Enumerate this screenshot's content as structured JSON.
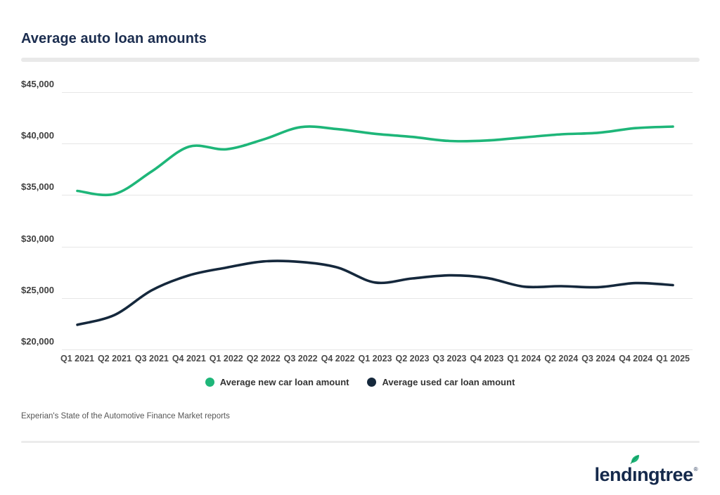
{
  "page": {
    "title": "Average auto loan amounts",
    "source": "Experian's State of the Automotive Finance Market reports",
    "logo": {
      "text_pre": "lend",
      "text_i": "ı",
      "text_post": "ngtree",
      "mark": "®"
    }
  },
  "chart_data": {
    "type": "line",
    "title": "Average auto loan amounts",
    "categories": [
      "Q1 2021",
      "Q2 2021",
      "Q3 2021",
      "Q4 2021",
      "Q1 2022",
      "Q2 2022",
      "Q3 2022",
      "Q4 2022",
      "Q1 2023",
      "Q2 2023",
      "Q3 2023",
      "Q4 2023",
      "Q1 2024",
      "Q2 2024",
      "Q3 2024",
      "Q4 2024",
      "Q1 2025"
    ],
    "series": [
      {
        "name": "Average new car loan amount",
        "color": "#1eb679",
        "values": [
          35400,
          35100,
          37300,
          39700,
          39450,
          40400,
          41600,
          41400,
          40950,
          40650,
          40250,
          40300,
          40600,
          40900,
          41050,
          41500,
          41650
        ]
      },
      {
        "name": "Average used car loan amount",
        "color": "#15283c",
        "values": [
          22400,
          23350,
          25750,
          27200,
          27950,
          28550,
          28500,
          27950,
          26500,
          26900,
          27200,
          26950,
          26100,
          26150,
          26050,
          26450,
          26250
        ]
      }
    ],
    "ylim": [
      20000,
      45000
    ],
    "yticks": [
      {
        "value": 45000,
        "label": "$45,000"
      },
      {
        "value": 40000,
        "label": "$40,000"
      },
      {
        "value": 35000,
        "label": "$35,000"
      },
      {
        "value": 30000,
        "label": "$30,000"
      },
      {
        "value": 25000,
        "label": "$25,000"
      },
      {
        "value": 20000,
        "label": "$20,000"
      }
    ],
    "grid": "horizontal",
    "legend_position": "bottom",
    "colors": {
      "accent_green": "#1eb679",
      "brand_navy": "#15294b",
      "gridline_gray": "#e6e6e6"
    }
  }
}
